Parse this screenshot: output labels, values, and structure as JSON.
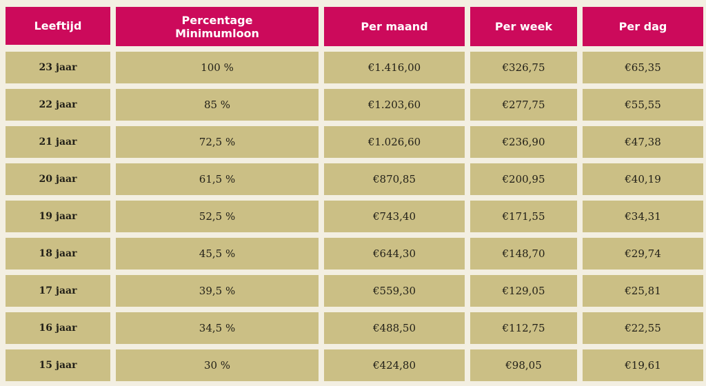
{
  "headers": [
    "Leeftijd",
    "Percentage\nMinimumloon",
    "Per maand",
    "Per week",
    "Per dag"
  ],
  "rows": [
    [
      "23 jaar",
      "100 %",
      "€1.416,00",
      "€326,75",
      "€65,35"
    ],
    [
      "22 jaar",
      "85 %",
      "€1.203,60",
      "€277,75",
      "€55,55"
    ],
    [
      "21 jaar",
      "72,5 %",
      "€1.026,60",
      "€236,90",
      "€47,38"
    ],
    [
      "20 jaar",
      "61,5 %",
      "€870,85",
      "€200,95",
      "€40,19"
    ],
    [
      "19 jaar",
      "52,5 %",
      "€743,40",
      "€171,55",
      "€34,31"
    ],
    [
      "18 jaar",
      "45,5 %",
      "€644,30",
      "€148,70",
      "€29,74"
    ],
    [
      "17 jaar",
      "39,5 %",
      "€559,30",
      "€129,05",
      "€25,81"
    ],
    [
      "16 jaar",
      "34,5 %",
      "€488,50",
      "€112,75",
      "€22,55"
    ],
    [
      "15 jaar",
      "30 %",
      "€424,80",
      "€98,05",
      "€19,61"
    ]
  ],
  "colors": {
    "header_bg": "#cc0a5b",
    "header_text": "#ffffff",
    "cell_bg": "#cbbf85",
    "page_bg": "#f3efe2"
  }
}
